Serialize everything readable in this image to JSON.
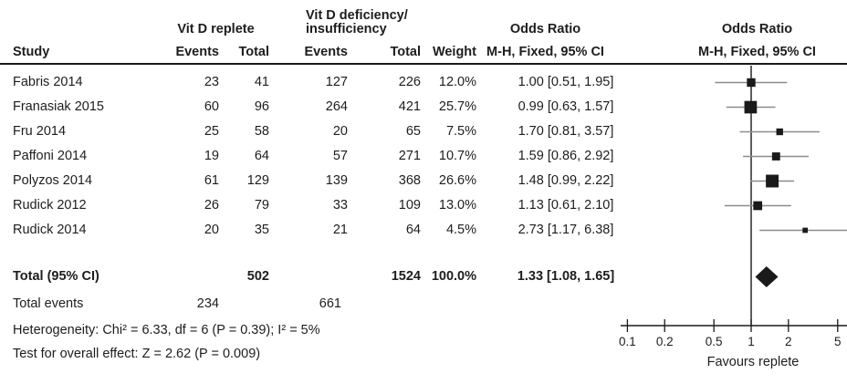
{
  "header": {
    "group1": "Vit D replete",
    "group2_line1": "Vit D deficiency/",
    "group2_line2": "insufficiency",
    "study": "Study",
    "events": "Events",
    "total": "Total",
    "weight": "Weight",
    "or_line1": "Odds Ratio",
    "or_line2": "M-H, Fixed, 95% CI",
    "plot_line1": "Odds Ratio",
    "plot_line2": "M-H, Fixed, 95% CI"
  },
  "studies": [
    {
      "name": "Fabris 2014",
      "events1": "23",
      "total1": "41",
      "events2": "127",
      "total2": "226",
      "weight": "12.0%",
      "or_ci": "1.00 [0.51, 1.95]"
    },
    {
      "name": "Franasiak 2015",
      "events1": "60",
      "total1": "96",
      "events2": "264",
      "total2": "421",
      "weight": "25.7%",
      "or_ci": "0.99 [0.63, 1.57]"
    },
    {
      "name": "Fru 2014",
      "events1": "25",
      "total1": "58",
      "events2": "20",
      "total2": "65",
      "weight": "7.5%",
      "or_ci": "1.70 [0.81, 3.57]"
    },
    {
      "name": "Paffoni 2014",
      "events1": "19",
      "total1": "64",
      "events2": "57",
      "total2": "271",
      "weight": "10.7%",
      "or_ci": "1.59 [0.86, 2.92]"
    },
    {
      "name": "Polyzos 2014",
      "events1": "61",
      "total1": "129",
      "events2": "139",
      "total2": "368",
      "weight": "26.6%",
      "or_ci": "1.48 [0.99, 2.22]"
    },
    {
      "name": "Rudick 2012",
      "events1": "26",
      "total1": "79",
      "events2": "33",
      "total2": "109",
      "weight": "13.0%",
      "or_ci": "1.13 [0.61, 2.10]"
    },
    {
      "name": "Rudick 2014",
      "events1": "20",
      "total1": "35",
      "events2": "21",
      "total2": "64",
      "weight": "4.5%",
      "or_ci": "2.73 [1.17, 6.38]"
    }
  ],
  "total_row": {
    "label": "Total (95% CI)",
    "total1": "502",
    "total2": "1524",
    "weight": "100.0%",
    "or_ci": "1.33 [1.08, 1.65]"
  },
  "total_events_row": {
    "label": "Total events",
    "events1": "234",
    "events2": "661"
  },
  "heterogeneity_text": "Heterogeneity: Chi² = 6.33, df = 6 (P = 0.39); I² = 5%",
  "overall_effect_text": "Test for overall effect: Z = 2.62 (P = 0.009)",
  "chart_data": {
    "type": "scatter",
    "subtype": "forest-plot",
    "title": "Odds Ratio, M-H, Fixed, 95% CI",
    "x_scale": "log",
    "x_ticks": [
      "0.1",
      "0.2",
      "0.5",
      "1",
      "2",
      "5"
    ],
    "xlim": [
      0.1,
      6.8
    ],
    "xlabel": "Favours replete",
    "no_effect_value": 1,
    "series": [
      {
        "name": "Fabris 2014",
        "or": 1.0,
        "ci_low": 0.51,
        "ci_high": 1.95,
        "weight_pct": 12.0
      },
      {
        "name": "Franasiak 2015",
        "or": 0.99,
        "ci_low": 0.63,
        "ci_high": 1.57,
        "weight_pct": 25.7
      },
      {
        "name": "Fru 2014",
        "or": 1.7,
        "ci_low": 0.81,
        "ci_high": 3.57,
        "weight_pct": 7.5
      },
      {
        "name": "Paffoni 2014",
        "or": 1.59,
        "ci_low": 0.86,
        "ci_high": 2.92,
        "weight_pct": 10.7
      },
      {
        "name": "Polyzos 2014",
        "or": 1.48,
        "ci_low": 0.99,
        "ci_high": 2.22,
        "weight_pct": 26.6
      },
      {
        "name": "Rudick 2012",
        "or": 1.13,
        "ci_low": 0.61,
        "ci_high": 2.1,
        "weight_pct": 13.0
      },
      {
        "name": "Rudick 2014",
        "or": 2.73,
        "ci_low": 1.17,
        "ci_high": 6.38,
        "weight_pct": 4.5
      }
    ],
    "total": {
      "name": "Total (95% CI)",
      "or": 1.33,
      "ci_low": 1.08,
      "ci_high": 1.65
    },
    "colors": {
      "text": "#1d1d1d",
      "ci_line": "#8c8c8c",
      "marker": "#1a1a1a"
    }
  }
}
